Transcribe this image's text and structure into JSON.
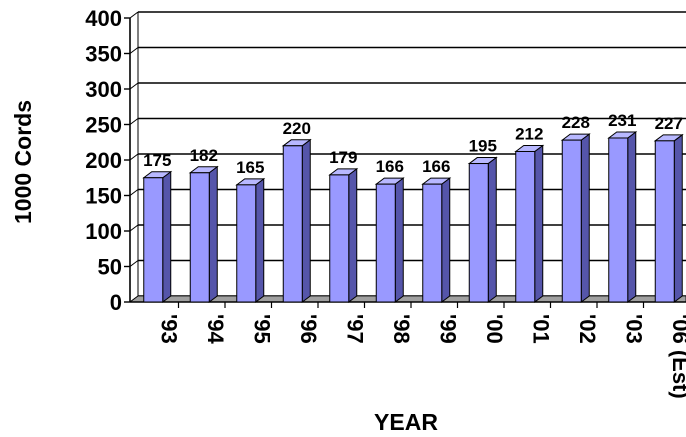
{
  "chart_data": {
    "type": "bar",
    "title": "",
    "xlabel": "YEAR",
    "ylabel": "1000 Cords",
    "categories": [
      "'93",
      "'94",
      "'95",
      "'96",
      "'97",
      "'98",
      "'99",
      "'00",
      "'01",
      "'02",
      "'03",
      "'06 (Est)"
    ],
    "values": [
      175,
      182,
      165,
      220,
      179,
      166,
      166,
      195,
      212,
      228,
      231,
      227
    ],
    "data_labels": [
      "175",
      "182",
      "165",
      "220",
      "179",
      "166",
      "166",
      "195",
      "212",
      "228",
      "231",
      "227"
    ],
    "ylim": [
      0,
      400
    ],
    "yticks": [
      "0",
      "50",
      "100",
      "150",
      "200",
      "250",
      "300",
      "350",
      "400"
    ],
    "grid": true,
    "legend": "none",
    "bar_color": "#9999ff",
    "bar_top_color": "#b8b8ff",
    "bar_side_color": "#5555aa",
    "floor_color": "#a0a0a0"
  }
}
